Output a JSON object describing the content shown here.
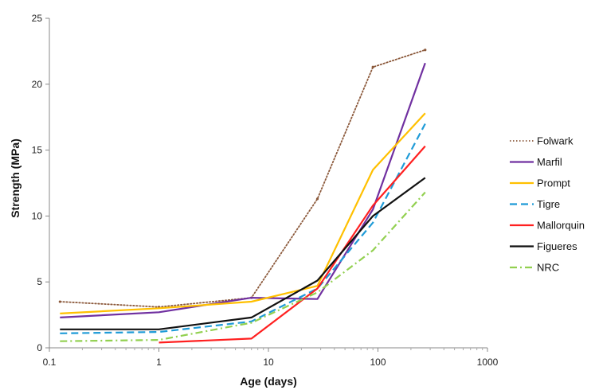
{
  "chart_data": {
    "type": "line",
    "title": "",
    "xlabel": "Age (days)",
    "ylabel": "Strength (MPa)",
    "xscale": "log",
    "xlim": [
      0.1,
      1000
    ],
    "ylim": [
      0,
      25
    ],
    "x_ticks": [
      0.1,
      1,
      10,
      100,
      1000
    ],
    "x_tick_labels": [
      "0.1",
      "1",
      "10",
      "100",
      "1000"
    ],
    "y_ticks": [
      0,
      5,
      10,
      15,
      20,
      25
    ],
    "y_tick_labels": [
      "0",
      "5",
      "10",
      "15",
      "20",
      "25"
    ],
    "grid": false,
    "legend_position": "right",
    "x": [
      0.125,
      1,
      7,
      28,
      90,
      270
    ],
    "series": [
      {
        "name": "Folwark",
        "values": [
          3.5,
          3.1,
          3.8,
          11.3,
          21.3,
          22.6
        ],
        "color": "#8c5a3c",
        "style": "dotted"
      },
      {
        "name": "Marfil",
        "values": [
          2.3,
          2.7,
          3.8,
          3.7,
          10.5,
          21.6
        ],
        "color": "#7030a0",
        "style": "solid"
      },
      {
        "name": "Prompt",
        "values": [
          2.6,
          3.0,
          3.5,
          4.7,
          13.5,
          17.8
        ],
        "color": "#ffc000",
        "style": "solid"
      },
      {
        "name": "Tigre",
        "values": [
          1.1,
          1.2,
          2.0,
          4.5,
          9.5,
          17.0
        ],
        "color": "#1f9bd7",
        "style": "dashed"
      },
      {
        "name": "Mallorquin",
        "values": [
          null,
          0.4,
          0.7,
          4.5,
          10.8,
          15.3
        ],
        "color": "#ff2020",
        "style": "solid"
      },
      {
        "name": "Figueres",
        "values": [
          1.4,
          1.4,
          2.3,
          5.1,
          10.0,
          12.9
        ],
        "color": "#111111",
        "style": "solid"
      },
      {
        "name": "NRC",
        "values": [
          0.5,
          0.6,
          1.9,
          4.2,
          7.4,
          11.8
        ],
        "color": "#92d050",
        "style": "dashdot"
      }
    ]
  }
}
